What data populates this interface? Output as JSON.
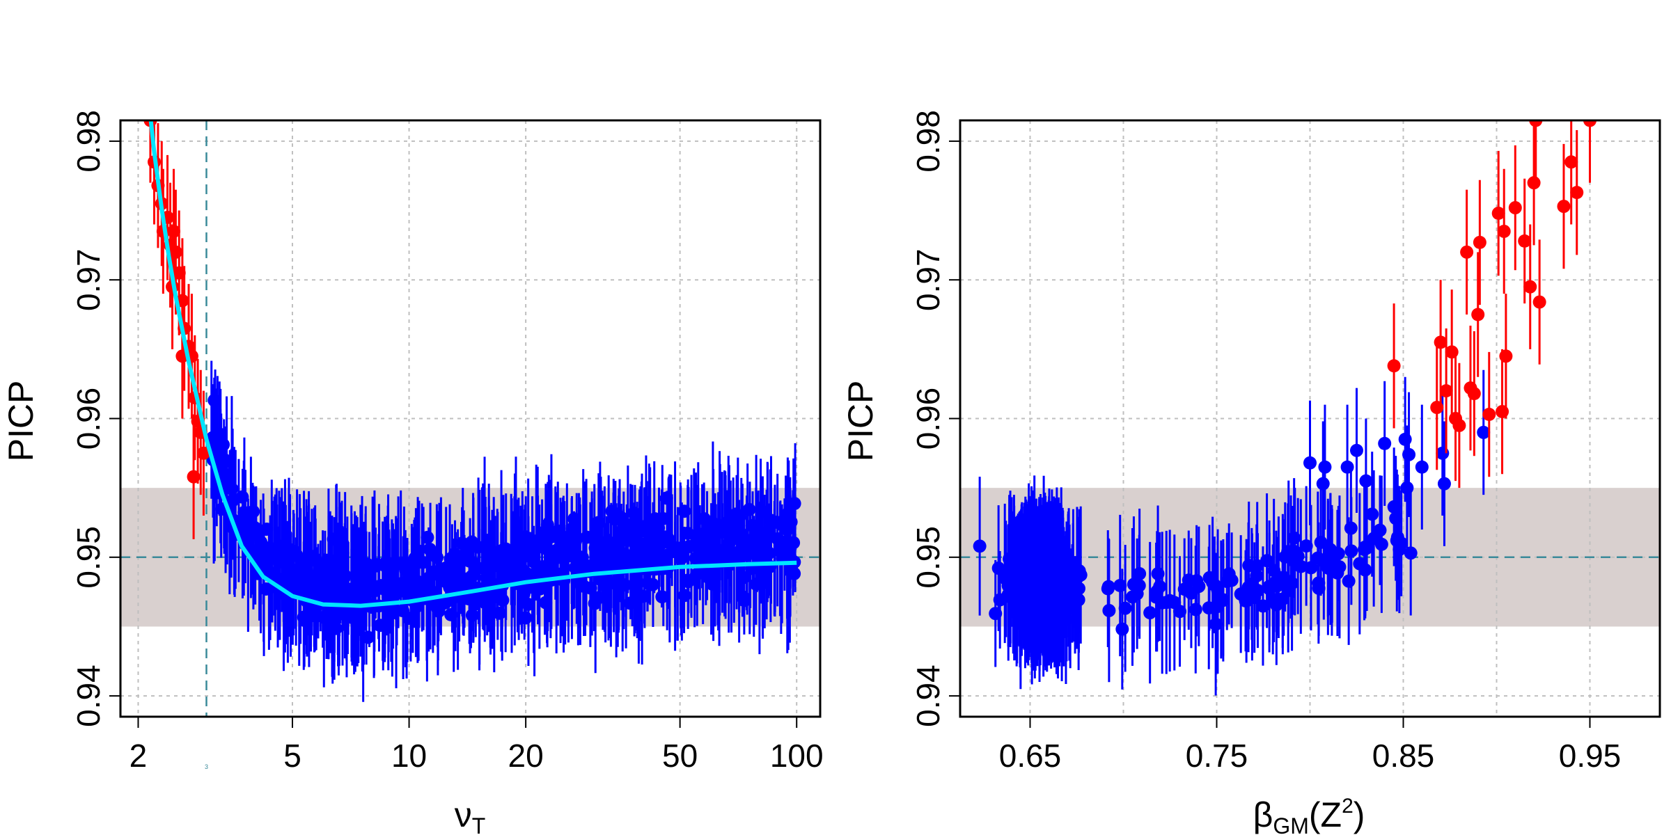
{
  "figure": {
    "panels": [
      {
        "ylabel": "PICP",
        "xlabel_main": "ν",
        "xlabel_sub": "T",
        "xticks": [
          "2",
          "5",
          "10",
          "20",
          "50",
          "100"
        ],
        "xtick_values": [
          2,
          5,
          10,
          20,
          50,
          100
        ],
        "yticks": [
          "0.94",
          "0.95",
          "0.96",
          "0.97",
          "0.98"
        ],
        "vline_label": "3"
      },
      {
        "ylabel": "PICP",
        "xlabel_main": "β",
        "xlabel_sub": "GM",
        "xlabel_arg": "(Z",
        "xlabel_sup": "2",
        "xlabel_close": ")",
        "xticks": [
          "0.65",
          "0.75",
          "0.85",
          "0.95"
        ],
        "xtick_values": [
          0.65,
          0.75,
          0.85,
          0.95
        ],
        "yticks": [
          "0.94",
          "0.95",
          "0.96",
          "0.97",
          "0.98"
        ]
      }
    ]
  },
  "chart_data": [
    {
      "type": "scatter",
      "x_scale": "log",
      "xlim": [
        1.8,
        115
      ],
      "ylim": [
        0.9385,
        0.9815
      ],
      "grid": true,
      "xgrid": [
        2,
        5,
        10,
        20,
        50,
        100
      ],
      "ygrid": [
        0.94,
        0.95,
        0.96,
        0.97,
        0.98
      ],
      "band": [
        0.945,
        0.955
      ],
      "hline": 0.95,
      "vline": 3,
      "error_half_width": 0.0045,
      "colors": {
        "above_band": "#ff0000",
        "in_band": "#0000ff",
        "fit": "#00e5ff",
        "band": "#d9d0cf",
        "ref_line": "#3a8a9a",
        "grid": "#bfbfbf"
      },
      "points_above_band": [
        [
          2.15,
          0.9815
        ],
        [
          2.2,
          0.9785
        ],
        [
          2.25,
          0.9768
        ],
        [
          2.3,
          0.9755
        ],
        [
          2.32,
          0.9735
        ],
        [
          2.38,
          0.9745
        ],
        [
          2.42,
          0.9725
        ],
        [
          2.47,
          0.9735
        ],
        [
          2.5,
          0.972
        ],
        [
          2.45,
          0.9695
        ],
        [
          2.55,
          0.9705
        ],
        [
          2.6,
          0.9685
        ],
        [
          2.63,
          0.9665
        ],
        [
          2.7,
          0.9652
        ],
        [
          2.75,
          0.9645
        ],
        [
          2.6,
          0.9645
        ],
        [
          2.8,
          0.9615
        ],
        [
          2.85,
          0.9598
        ],
        [
          2.9,
          0.959
        ],
        [
          2.95,
          0.9575
        ],
        [
          2.78,
          0.9558
        ]
      ],
      "fit_curve": [
        [
          2.1,
          0.9845
        ],
        [
          2.2,
          0.9792
        ],
        [
          2.3,
          0.9751
        ],
        [
          2.4,
          0.9717
        ],
        [
          2.5,
          0.9688
        ],
        [
          2.7,
          0.9641
        ],
        [
          3,
          0.9585
        ],
        [
          3.3,
          0.9545
        ],
        [
          3.7,
          0.9508
        ],
        [
          4.2,
          0.9486
        ],
        [
          5,
          0.9472
        ],
        [
          6,
          0.9466
        ],
        [
          7.5,
          0.9465
        ],
        [
          10,
          0.9468
        ],
        [
          15,
          0.9476
        ],
        [
          20,
          0.9482
        ],
        [
          30,
          0.9488
        ],
        [
          50,
          0.9493
        ],
        [
          75,
          0.9495
        ],
        [
          100,
          0.9496
        ]
      ],
      "points_in_band_summary": "≈600 blue points across ν_T ≈ 3–100, PICP mostly between 0.943 and 0.953"
    },
    {
      "type": "scatter",
      "xlim": [
        0.6125,
        0.9875
      ],
      "ylim": [
        0.9385,
        0.9815
      ],
      "grid": true,
      "xgrid": [
        0.65,
        0.7,
        0.75,
        0.8,
        0.85,
        0.9,
        0.95
      ],
      "ygrid": [
        0.94,
        0.95,
        0.96,
        0.97,
        0.98
      ],
      "band": [
        0.945,
        0.955
      ],
      "hline": 0.95,
      "error_half_width": 0.0045,
      "colors": {
        "above_band": "#ff0000",
        "in_band": "#0000ff",
        "band": "#d9d0cf",
        "ref_line": "#3a8a9a",
        "grid": "#bfbfbf"
      },
      "points_above_band": [
        [
          0.845,
          0.9638
        ],
        [
          0.868,
          0.9608
        ],
        [
          0.87,
          0.9655
        ],
        [
          0.873,
          0.962
        ],
        [
          0.876,
          0.9648
        ],
        [
          0.878,
          0.96
        ],
        [
          0.88,
          0.9595
        ],
        [
          0.884,
          0.972
        ],
        [
          0.886,
          0.9622
        ],
        [
          0.888,
          0.9618
        ],
        [
          0.89,
          0.9675
        ],
        [
          0.891,
          0.9727
        ],
        [
          0.896,
          0.9603
        ],
        [
          0.901,
          0.9748
        ],
        [
          0.903,
          0.9605
        ],
        [
          0.904,
          0.9735
        ],
        [
          0.905,
          0.9645
        ],
        [
          0.91,
          0.9752
        ],
        [
          0.915,
          0.9728
        ],
        [
          0.918,
          0.9695
        ],
        [
          0.92,
          0.977
        ],
        [
          0.921,
          0.9815
        ],
        [
          0.923,
          0.9684
        ],
        [
          0.936,
          0.9753
        ],
        [
          0.94,
          0.9785
        ],
        [
          0.943,
          0.9763
        ],
        [
          0.95,
          0.9815
        ]
      ],
      "points_high_blue": [
        [
          0.893,
          0.959
        ],
        [
          0.871,
          0.9575
        ],
        [
          0.872,
          0.9553
        ],
        [
          0.851,
          0.9585
        ],
        [
          0.84,
          0.9582
        ],
        [
          0.825,
          0.9577
        ],
        [
          0.83,
          0.9555
        ],
        [
          0.853,
          0.9574
        ],
        [
          0.852,
          0.955
        ],
        [
          0.86,
          0.9565
        ],
        [
          0.8,
          0.9568
        ],
        [
          0.808,
          0.9565
        ],
        [
          0.82,
          0.9565
        ],
        [
          0.807,
          0.9553
        ],
        [
          0.854,
          0.9503
        ]
      ],
      "points_in_band_summary": "≈450 blue points; dense cluster at β_GM(Z²) ≈ 0.63–0.70, sparser up to ≈0.85, PICP mostly between 0.942 and 0.953"
    }
  ]
}
